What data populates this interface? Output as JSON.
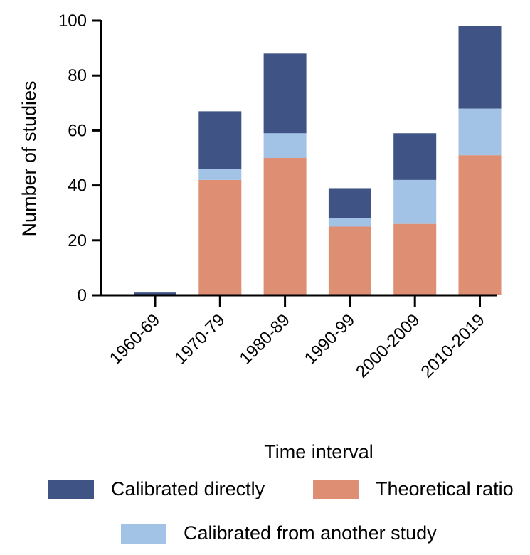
{
  "chart_data": {
    "type": "bar",
    "stacked": true,
    "categories": [
      "1960-69",
      "1970-79",
      "1980-89",
      "1990-99",
      "2000-2009",
      "2010-2019"
    ],
    "series": [
      {
        "name": "Theoretical ratio",
        "color": "#dd8e73",
        "values": [
          0,
          42,
          50,
          25,
          26,
          51
        ]
      },
      {
        "name": "Calibrated from another study",
        "color": "#a3c3e6",
        "values": [
          0,
          4,
          9,
          3,
          16,
          17
        ]
      },
      {
        "name": "Calibrated directly",
        "color": "#3f5485",
        "values": [
          1,
          21,
          29,
          11,
          17,
          30
        ]
      }
    ],
    "xlabel": "Time interval",
    "ylabel": "Number of studies",
    "ylim": [
      0,
      100
    ],
    "yticks": [
      0,
      20,
      40,
      60,
      80,
      100
    ],
    "grid": false,
    "legend_position": "bottom"
  }
}
